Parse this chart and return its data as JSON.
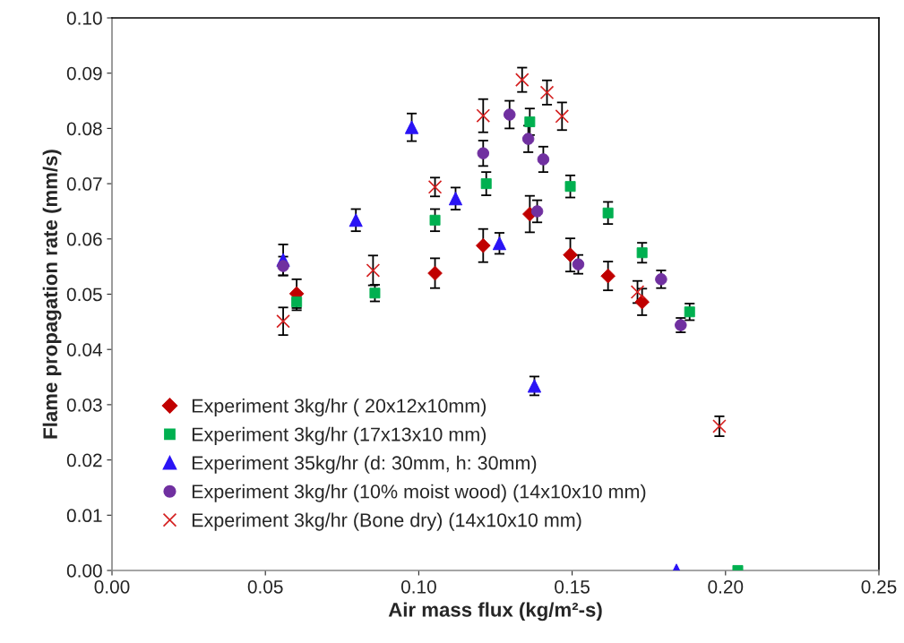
{
  "chart_data": {
    "type": "scatter",
    "xlabel": "Air mass flux (kg/m²-s)",
    "ylabel": "Flame propagation rate (mm/s)",
    "xlim": [
      0,
      0.25
    ],
    "xticks": [
      {
        "value": 0,
        "label": "0.00"
      },
      {
        "value": 0.05,
        "label": "0.05"
      },
      {
        "value": 0.1,
        "label": "0.10"
      },
      {
        "value": 0.15,
        "label": "0.15"
      },
      {
        "value": 0.2,
        "label": "0.20"
      },
      {
        "value": 0.25,
        "label": "0.25"
      }
    ],
    "ylim": [
      0,
      0.1
    ],
    "yticks": [
      {
        "value": 0,
        "label": "0.00"
      },
      {
        "value": 0.01,
        "label": "0.01"
      },
      {
        "value": 0.02,
        "label": "0.02"
      },
      {
        "value": 0.03,
        "label": "0.03"
      },
      {
        "value": 0.04,
        "label": "0.04"
      },
      {
        "value": 0.05,
        "label": "0.05"
      },
      {
        "value": 0.06,
        "label": "0.06"
      },
      {
        "value": 0.07,
        "label": "0.07"
      },
      {
        "value": 0.08,
        "label": "0.08"
      },
      {
        "value": 0.09,
        "label": "0.09"
      },
      {
        "value": 0.1,
        "label": "0.10"
      }
    ],
    "grid": false,
    "legend": "bottom left",
    "series": [
      {
        "name": "Experiment 3kg/hr ( 20x12x10mm)",
        "color": "#c00000",
        "marker": "diamond",
        "x": [
          0.0602,
          0.1053,
          0.121,
          0.1362,
          0.1494,
          0.1617,
          0.1728
        ],
        "values": [
          0.0501,
          0.0538,
          0.0588,
          0.0645,
          0.0571,
          0.0533,
          0.0486
        ],
        "errors": [
          0.0026,
          0.0027,
          0.003,
          0.0033,
          0.003,
          0.0026,
          0.0024
        ]
      },
      {
        "name": "Experiment 3kg/hr (17x13x10 mm)",
        "color": "#00b050",
        "marker": "square",
        "x": [
          0.0602,
          0.0857,
          0.1053,
          0.122,
          0.1362,
          0.1494,
          0.1617,
          0.1728,
          0.1883,
          0.204
        ],
        "values": [
          0.0486,
          0.0502,
          0.0634,
          0.07,
          0.0812,
          0.0695,
          0.0647,
          0.0575,
          0.0468,
          0
        ],
        "errors": [
          0.0015,
          0.0015,
          0.002,
          0.0021,
          0.0024,
          0.002,
          0.002,
          0.0018,
          0.0015,
          null
        ]
      },
      {
        "name": "Experiment 35kg/hr (d: 30mm, h: 30mm)",
        "color": "#2a14f5",
        "marker": "triangle",
        "x": [
          0.0558,
          0.0795,
          0.0977,
          0.112,
          0.1263,
          0.1377,
          0.184
        ],
        "values": [
          0.0562,
          0.0634,
          0.0802,
          0.0673,
          0.0592,
          0.0334,
          0
        ],
        "errors": [
          0.0028,
          0.002,
          0.0025,
          0.002,
          0.0019,
          0.0017,
          null
        ]
      },
      {
        "name": "Experiment 3kg/hr (10% moist wood) (14x10x10 mm)",
        "color": "#7030a0",
        "marker": "circle",
        "x": [
          0.0558,
          0.121,
          0.1296,
          0.1357,
          0.1386,
          0.1406,
          0.152,
          0.179,
          0.1854
        ],
        "values": [
          0.0551,
          0.0755,
          0.0825,
          0.0781,
          0.065,
          0.0744,
          0.0554,
          0.0527,
          0.0444
        ],
        "errors": [
          0.0017,
          0.0023,
          0.0025,
          0.0024,
          0.002,
          0.0023,
          0.0017,
          0.0016,
          0.0013
        ]
      },
      {
        "name": "Experiment 3kg/hr (Bone dry) (14x10x10 mm)",
        "color": "#d42020",
        "marker": "cross",
        "x": [
          0.0558,
          0.0851,
          0.1053,
          0.121,
          0.1337,
          0.1418,
          0.1467,
          0.1713,
          0.198
        ],
        "values": [
          0.0451,
          0.0543,
          0.0694,
          0.0823,
          0.0888,
          0.0865,
          0.0822,
          0.0504,
          0.0261
        ],
        "errors": [
          0.0025,
          0.0027,
          0.0017,
          0.003,
          0.0022,
          0.0022,
          0.0025,
          0.002,
          0.0018
        ]
      }
    ]
  }
}
